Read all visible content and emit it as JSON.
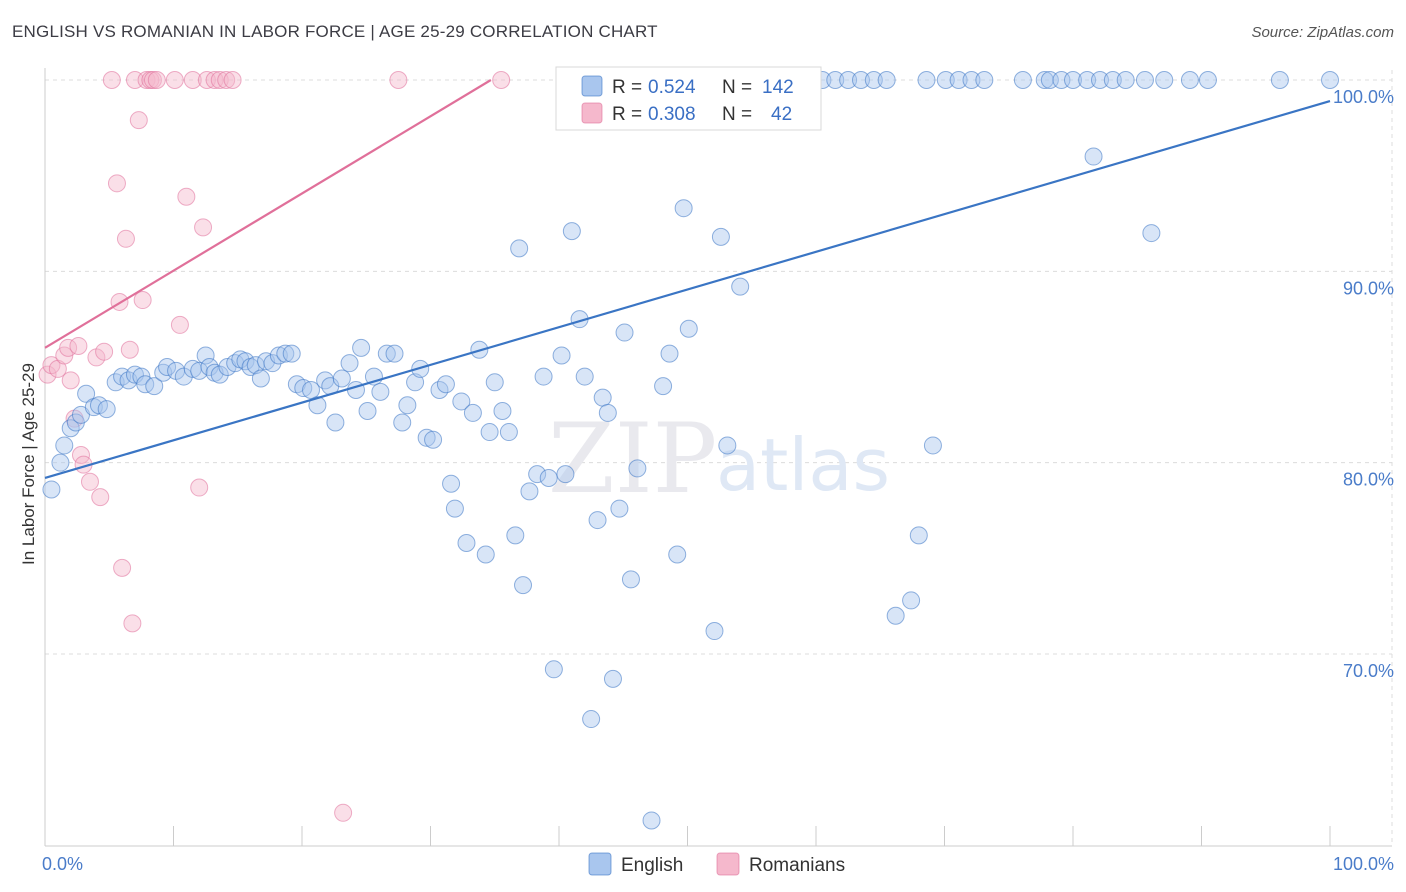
{
  "title": "ENGLISH VS ROMANIAN IN LABOR FORCE | AGE 25-29 CORRELATION CHART",
  "source": "Source: ZipAtlas.com",
  "watermark": {
    "zip": "ZIP",
    "atlas": "atlas"
  },
  "colors": {
    "english": "#3a75c4",
    "english_fill": "#a9c6ee",
    "romanian": "#e0709a",
    "romanian_fill": "#f5b8cc",
    "axis_text": "#4a7cc9"
  },
  "chart_data": {
    "type": "scatter",
    "title": "ENGLISH VS ROMANIAN IN LABOR FORCE | AGE 25-29 CORRELATION CHART",
    "xlabel": "",
    "ylabel": "In Labor Force | Age 25-29",
    "xlim": [
      0,
      100
    ],
    "ylim": [
      60,
      100
    ],
    "x_tick_labels": [
      "0.0%",
      "100.0%"
    ],
    "y_ticks": [
      70,
      80,
      90,
      100
    ],
    "y_tick_labels": [
      "70.0%",
      "80.0%",
      "90.0%",
      "100.0%"
    ],
    "legend": {
      "position": "top-center",
      "entries": [
        {
          "name": "English",
          "r_label": "R =",
          "r": "0.524",
          "n_label": "N =",
          "n": "142"
        },
        {
          "name": "Romanians",
          "r_label": "R =",
          "r": "0.308",
          "n_label": "N =",
          "n": "42"
        }
      ]
    },
    "series": [
      {
        "name": "English",
        "trend": {
          "x": [
            0,
            100
          ],
          "y": [
            79.2,
            98.9
          ]
        },
        "points": [
          [
            0.5,
            78.6
          ],
          [
            1.2,
            80.0
          ],
          [
            1.5,
            80.9
          ],
          [
            2.0,
            81.8
          ],
          [
            2.4,
            82.1
          ],
          [
            2.8,
            82.5
          ],
          [
            3.2,
            83.6
          ],
          [
            3.8,
            82.9
          ],
          [
            4.2,
            83.0
          ],
          [
            4.8,
            82.8
          ],
          [
            5.5,
            84.2
          ],
          [
            6.0,
            84.5
          ],
          [
            6.5,
            84.3
          ],
          [
            7.0,
            84.6
          ],
          [
            7.5,
            84.5
          ],
          [
            7.8,
            84.1
          ],
          [
            8.5,
            84.0
          ],
          [
            9.2,
            84.7
          ],
          [
            9.5,
            85.0
          ],
          [
            10.2,
            84.8
          ],
          [
            10.8,
            84.5
          ],
          [
            11.5,
            84.9
          ],
          [
            12.0,
            84.8
          ],
          [
            12.5,
            85.6
          ],
          [
            12.8,
            85.0
          ],
          [
            13.2,
            84.7
          ],
          [
            13.6,
            84.6
          ],
          [
            14.2,
            85.0
          ],
          [
            14.8,
            85.2
          ],
          [
            15.2,
            85.4
          ],
          [
            15.6,
            85.3
          ],
          [
            16.0,
            85.0
          ],
          [
            16.4,
            85.1
          ],
          [
            16.8,
            84.4
          ],
          [
            17.2,
            85.3
          ],
          [
            17.7,
            85.2
          ],
          [
            18.2,
            85.6
          ],
          [
            18.7,
            85.7
          ],
          [
            19.2,
            85.7
          ],
          [
            19.6,
            84.1
          ],
          [
            20.1,
            83.9
          ],
          [
            20.7,
            83.8
          ],
          [
            21.2,
            83.0
          ],
          [
            21.8,
            84.3
          ],
          [
            22.2,
            84.0
          ],
          [
            22.6,
            82.1
          ],
          [
            23.1,
            84.4
          ],
          [
            23.7,
            85.2
          ],
          [
            24.2,
            83.8
          ],
          [
            24.6,
            86.0
          ],
          [
            25.1,
            82.7
          ],
          [
            25.6,
            84.5
          ],
          [
            26.1,
            83.7
          ],
          [
            26.6,
            85.7
          ],
          [
            27.2,
            85.7
          ],
          [
            27.8,
            82.1
          ],
          [
            28.2,
            83.0
          ],
          [
            28.8,
            84.2
          ],
          [
            29.2,
            84.9
          ],
          [
            29.7,
            81.3
          ],
          [
            30.2,
            81.2
          ],
          [
            30.7,
            83.8
          ],
          [
            31.2,
            84.1
          ],
          [
            31.6,
            78.9
          ],
          [
            31.9,
            77.6
          ],
          [
            32.4,
            83.2
          ],
          [
            32.8,
            75.8
          ],
          [
            33.3,
            82.6
          ],
          [
            33.8,
            85.9
          ],
          [
            34.3,
            75.2
          ],
          [
            34.6,
            81.6
          ],
          [
            35.0,
            84.2
          ],
          [
            35.6,
            82.7
          ],
          [
            36.1,
            81.6
          ],
          [
            36.6,
            76.2
          ],
          [
            36.9,
            91.2
          ],
          [
            37.2,
            73.6
          ],
          [
            37.7,
            78.5
          ],
          [
            38.3,
            79.4
          ],
          [
            38.8,
            84.5
          ],
          [
            39.2,
            79.2
          ],
          [
            39.6,
            69.2
          ],
          [
            40.2,
            85.6
          ],
          [
            40.5,
            79.4
          ],
          [
            41.0,
            92.1
          ],
          [
            41.6,
            87.5
          ],
          [
            42.0,
            84.5
          ],
          [
            42.5,
            66.6
          ],
          [
            43.0,
            77.0
          ],
          [
            43.4,
            83.4
          ],
          [
            43.8,
            82.6
          ],
          [
            44.2,
            68.7
          ],
          [
            44.7,
            77.6
          ],
          [
            45.1,
            86.8
          ],
          [
            45.6,
            73.9
          ],
          [
            46.1,
            79.7
          ],
          [
            46.6,
            100
          ],
          [
            47.2,
            61.3
          ],
          [
            48.1,
            84.0
          ],
          [
            48.6,
            85.7
          ],
          [
            49.2,
            75.2
          ],
          [
            49.7,
            93.3
          ],
          [
            50.1,
            87.0
          ],
          [
            51.1,
            100
          ],
          [
            52.1,
            71.2
          ],
          [
            52.6,
            91.8
          ],
          [
            53.1,
            80.9
          ],
          [
            53.6,
            100
          ],
          [
            54.1,
            89.2
          ],
          [
            54.6,
            100
          ],
          [
            55.5,
            100
          ],
          [
            56.5,
            100
          ],
          [
            57.5,
            100
          ],
          [
            58.5,
            100
          ],
          [
            59.5,
            100
          ],
          [
            60.5,
            100
          ],
          [
            61.5,
            100
          ],
          [
            62.5,
            100
          ],
          [
            63.5,
            100
          ],
          [
            64.5,
            100
          ],
          [
            65.5,
            100
          ],
          [
            66.2,
            72.0
          ],
          [
            67.4,
            72.8
          ],
          [
            68.0,
            76.2
          ],
          [
            68.6,
            100
          ],
          [
            69.1,
            80.9
          ],
          [
            70.1,
            100
          ],
          [
            71.1,
            100
          ],
          [
            72.1,
            100
          ],
          [
            73.1,
            100
          ],
          [
            76.1,
            100
          ],
          [
            77.8,
            100
          ],
          [
            78.2,
            100
          ],
          [
            79.1,
            100
          ],
          [
            80.0,
            100
          ],
          [
            81.1,
            100
          ],
          [
            81.6,
            96.0
          ],
          [
            82.1,
            100
          ],
          [
            83.1,
            100
          ],
          [
            84.1,
            100
          ],
          [
            85.6,
            100
          ],
          [
            86.1,
            92.0
          ],
          [
            87.1,
            100
          ],
          [
            89.1,
            100
          ],
          [
            90.5,
            100
          ],
          [
            96.1,
            100
          ],
          [
            100,
            100
          ]
        ]
      },
      {
        "name": "Romanians",
        "trend": {
          "x": [
            0,
            34.7
          ],
          "y": [
            86.0,
            100
          ]
        },
        "points": [
          [
            0.2,
            84.6
          ],
          [
            0.5,
            85.1
          ],
          [
            1.0,
            84.9
          ],
          [
            1.5,
            85.6
          ],
          [
            1.8,
            86.0
          ],
          [
            2.0,
            84.3
          ],
          [
            2.3,
            82.3
          ],
          [
            2.6,
            86.1
          ],
          [
            2.8,
            80.4
          ],
          [
            3.0,
            79.9
          ],
          [
            3.5,
            79.0
          ],
          [
            4.0,
            85.5
          ],
          [
            4.3,
            78.2
          ],
          [
            4.6,
            85.8
          ],
          [
            5.2,
            100
          ],
          [
            5.6,
            94.6
          ],
          [
            5.8,
            88.4
          ],
          [
            6.0,
            74.5
          ],
          [
            6.3,
            91.7
          ],
          [
            6.6,
            85.9
          ],
          [
            6.8,
            71.6
          ],
          [
            7.0,
            100
          ],
          [
            7.3,
            97.9
          ],
          [
            7.6,
            88.5
          ],
          [
            7.9,
            100
          ],
          [
            8.2,
            100
          ],
          [
            8.4,
            100
          ],
          [
            8.7,
            100
          ],
          [
            10.1,
            100
          ],
          [
            10.5,
            87.2
          ],
          [
            11.0,
            93.9
          ],
          [
            11.5,
            100
          ],
          [
            12.0,
            78.7
          ],
          [
            12.3,
            92.3
          ],
          [
            12.6,
            100
          ],
          [
            13.2,
            100
          ],
          [
            13.6,
            100
          ],
          [
            14.1,
            100
          ],
          [
            14.6,
            100
          ],
          [
            23.2,
            61.7
          ],
          [
            27.5,
            100
          ],
          [
            35.5,
            100
          ]
        ]
      }
    ]
  }
}
